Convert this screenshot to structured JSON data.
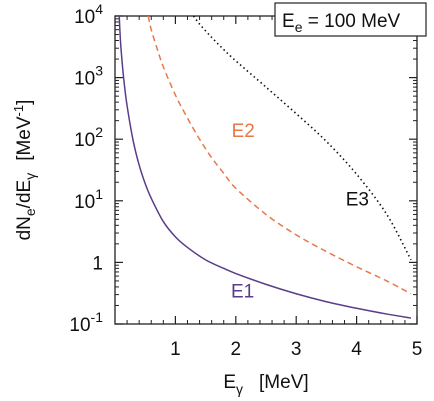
{
  "chart_data": {
    "type": "line",
    "annotation": {
      "main": "E",
      "sub": "e",
      "rest": " = 100 MeV"
    },
    "xlabel": {
      "main": "E",
      "sub": "γ",
      "unit": "[MeV]"
    },
    "ylabel": {
      "p1": "dN",
      "s1": "e",
      "p2": "/dE",
      "s2": "γ",
      "unit": "[MeV",
      "sup": "-1",
      "close": "]"
    },
    "xlim": [
      0,
      5
    ],
    "ylim": [
      0.1,
      10000
    ],
    "yscale": "log",
    "grid": false,
    "xticks": [
      1,
      2,
      3,
      4,
      5
    ],
    "xtick_labels": [
      "1",
      "2",
      "3",
      "4",
      "5"
    ],
    "yticks": [
      {
        "value": 10000,
        "base": "10",
        "exp": "4"
      },
      {
        "value": 1000,
        "base": "10",
        "exp": "3"
      },
      {
        "value": 100,
        "base": "10",
        "exp": "2"
      },
      {
        "value": 10,
        "base": "10",
        "exp": "1"
      },
      {
        "value": 1,
        "base": "1",
        "exp": ""
      },
      {
        "value": 0.1,
        "base": "10",
        "exp": "-1"
      }
    ],
    "series": [
      {
        "name": "E1",
        "color": "#5a3d8a",
        "style": "solid",
        "label_at": {
          "x": 1.92,
          "y": 0.35
        },
        "x": [
          0.07,
          0.09,
          0.12,
          0.15,
          0.2,
          0.3,
          0.4,
          0.5,
          0.6,
          0.8,
          1.0,
          1.2,
          1.5,
          1.8,
          2.0,
          2.5,
          3.0,
          3.5,
          4.0,
          4.5,
          4.9
        ],
        "y": [
          10000,
          4000,
          1700,
          850,
          350,
          95,
          38,
          19,
          11,
          4.6,
          2.6,
          1.75,
          1.1,
          0.8,
          0.66,
          0.44,
          0.31,
          0.23,
          0.18,
          0.145,
          0.125
        ]
      },
      {
        "name": "E2",
        "color": "#e8774a",
        "style": "dashed",
        "label_at": {
          "x": 1.93,
          "y": 140
        },
        "x": [
          0.55,
          0.6,
          0.7,
          0.8,
          1.0,
          1.2,
          1.4,
          1.6,
          1.8,
          2.0,
          2.5,
          3.0,
          3.5,
          4.0,
          4.5,
          4.9
        ],
        "y": [
          10000,
          6000,
          2900,
          1500,
          520,
          220,
          100,
          50,
          28,
          16,
          6,
          2.8,
          1.5,
          0.85,
          0.5,
          0.31
        ]
      },
      {
        "name": "E3",
        "color": "#111111",
        "style": "dotted",
        "label_at": {
          "x": 3.82,
          "y": 11
        },
        "x": [
          1.3,
          1.4,
          1.6,
          1.8,
          2.0,
          2.5,
          3.0,
          3.5,
          4.0,
          4.5,
          4.9
        ],
        "y": [
          10000,
          7400,
          4500,
          2850,
          1870,
          700,
          260,
          92,
          27,
          6,
          1.1
        ]
      }
    ]
  }
}
